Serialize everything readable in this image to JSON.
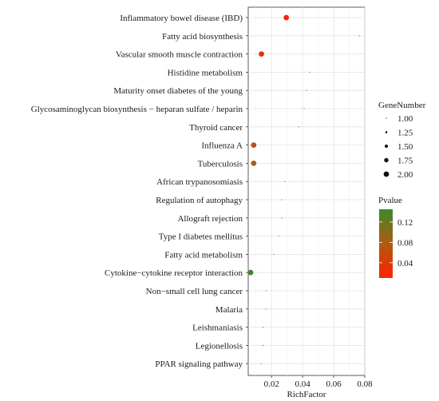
{
  "chart_data": {
    "type": "scatter",
    "title": "",
    "xlabel": "RichFactor",
    "ylabel": "",
    "xlim": [
      0.005,
      0.08
    ],
    "x_ticks": [
      0.02,
      0.04,
      0.06,
      0.08
    ],
    "x_tick_labels": [
      "0.02",
      "0.04",
      "0.06",
      "0.08"
    ],
    "grid": true,
    "categories": [
      "Inflammatory bowel disease (IBD)",
      "Fatty acid biosynthesis",
      "Vascular smooth muscle contraction",
      "Histidine metabolism",
      "Maturity onset diabetes of the young",
      "Glycosaminoglycan biosynthesis − heparan sulfate / heparin",
      "Thyroid cancer",
      "Influenza A",
      "Tuberculosis",
      "African trypanosomiasis",
      "Regulation of autophagy",
      "Allograft rejection",
      "Type I diabetes mellitus",
      "Fatty acid metabolism",
      "Cytokine−cytokine receptor interaction",
      "Non−small cell lung cancer",
      "Malaria",
      "Leishmaniasis",
      "Legionellosis",
      "PPAR signaling pathway"
    ],
    "points": [
      {
        "category": "Inflammatory bowel disease (IBD)",
        "rich_factor": 0.0295,
        "gene_number": 2,
        "pvalue": 0.01
      },
      {
        "category": "Fatty acid biosynthesis",
        "rich_factor": 0.0765,
        "gene_number": 1,
        "pvalue": 0.05
      },
      {
        "category": "Vascular smooth muscle contraction",
        "rich_factor": 0.0135,
        "gene_number": 2,
        "pvalue": 0.03
      },
      {
        "category": "Histidine metabolism",
        "rich_factor": 0.0445,
        "gene_number": 1,
        "pvalue": 0.07
      },
      {
        "category": "Maturity onset diabetes of the young",
        "rich_factor": 0.0425,
        "gene_number": 1,
        "pvalue": 0.07
      },
      {
        "category": "Glycosaminoglycan biosynthesis − heparan sulfate / heparin",
        "rich_factor": 0.041,
        "gene_number": 1,
        "pvalue": 0.07
      },
      {
        "category": "Thyroid cancer",
        "rich_factor": 0.0375,
        "gene_number": 1,
        "pvalue": 0.08
      },
      {
        "category": "Influenza A",
        "rich_factor": 0.0085,
        "gene_number": 2,
        "pvalue": 0.07
      },
      {
        "category": "Tuberculosis",
        "rich_factor": 0.0085,
        "gene_number": 2,
        "pvalue": 0.08
      },
      {
        "category": "African trypanosomiasis",
        "rich_factor": 0.0285,
        "gene_number": 1,
        "pvalue": 0.1
      },
      {
        "category": "Regulation of autophagy",
        "rich_factor": 0.0265,
        "gene_number": 1,
        "pvalue": 0.1
      },
      {
        "category": "Allograft rejection",
        "rich_factor": 0.0265,
        "gene_number": 1,
        "pvalue": 0.1
      },
      {
        "category": "Type I diabetes mellitus",
        "rich_factor": 0.0245,
        "gene_number": 1,
        "pvalue": 0.11
      },
      {
        "category": "Fatty acid metabolism",
        "rich_factor": 0.0215,
        "gene_number": 1,
        "pvalue": 0.11
      },
      {
        "category": "Cytokine−cytokine receptor interaction",
        "rich_factor": 0.0065,
        "gene_number": 2,
        "pvalue": 0.14
      },
      {
        "category": "Non−small cell lung cancer",
        "rich_factor": 0.0165,
        "gene_number": 1,
        "pvalue": 0.12
      },
      {
        "category": "Malaria",
        "rich_factor": 0.0165,
        "gene_number": 1,
        "pvalue": 0.12
      },
      {
        "category": "Leishmaniasis",
        "rich_factor": 0.0145,
        "gene_number": 1,
        "pvalue": 0.13
      },
      {
        "category": "Legionellosis",
        "rich_factor": 0.0145,
        "gene_number": 1,
        "pvalue": 0.13
      },
      {
        "category": "PPAR signaling pathway",
        "rich_factor": 0.0135,
        "gene_number": 1,
        "pvalue": 0.14
      }
    ],
    "size_legend": {
      "title": "GeneNumber",
      "values": [
        1.0,
        1.25,
        1.5,
        1.75,
        2.0
      ],
      "labels": [
        "1.00",
        "1.25",
        "1.50",
        "1.75",
        "2.00"
      ]
    },
    "color_legend": {
      "title": "Pvalue",
      "range": [
        0.01,
        0.145
      ],
      "low_color": "#ff2200",
      "high_color": "#3a8a2a",
      "ticks": [
        0.04,
        0.08,
        0.12
      ],
      "tick_labels": [
        "0.04",
        "0.08",
        "0.12"
      ]
    },
    "legend_position": "right"
  }
}
